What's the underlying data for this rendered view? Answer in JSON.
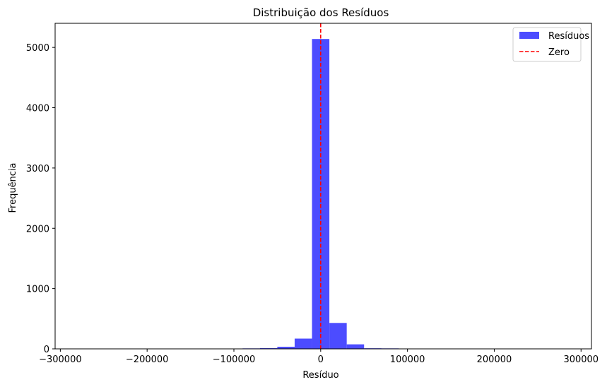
{
  "chart_data": {
    "type": "bar",
    "title": "Distribuição dos Resíduos",
    "xlabel": "Resíduo",
    "ylabel": "Frequência",
    "xlim": [
      -306000,
      312000
    ],
    "ylim": [
      0,
      5400
    ],
    "xticks": [
      -300000,
      -200000,
      -100000,
      0,
      100000,
      200000,
      300000
    ],
    "xtick_labels": [
      "−300000",
      "−200000",
      "−100000",
      "0",
      "100000",
      "200000",
      "300000"
    ],
    "yticks": [
      0,
      1000,
      2000,
      3000,
      4000,
      5000
    ],
    "ytick_labels": [
      "0",
      "1000",
      "2000",
      "3000",
      "4000",
      "5000"
    ],
    "grid": false,
    "legend_position": "top-right",
    "series": [
      {
        "name": "Resíduos",
        "color": "#4c4cff",
        "bins": [
          {
            "x0": -90000,
            "x1": -70000,
            "count": 8
          },
          {
            "x0": -70000,
            "x1": -50000,
            "count": 12
          },
          {
            "x0": -50000,
            "x1": -30000,
            "count": 35
          },
          {
            "x0": -30000,
            "x1": -10000,
            "count": 170
          },
          {
            "x0": -10000,
            "x1": 10000,
            "count": 5140
          },
          {
            "x0": 10000,
            "x1": 30000,
            "count": 430
          },
          {
            "x0": 30000,
            "x1": 50000,
            "count": 75
          },
          {
            "x0": 50000,
            "x1": 70000,
            "count": 10
          },
          {
            "x0": 70000,
            "x1": 90000,
            "count": 8
          },
          {
            "x0": 90000,
            "x1": 110000,
            "count": 5
          },
          {
            "x0": 120000,
            "x1": 140000,
            "count": 5
          }
        ]
      },
      {
        "name": "Zero",
        "type": "vline",
        "x": 0,
        "color": "#ff0000",
        "linestyle": "dashed"
      }
    ]
  }
}
